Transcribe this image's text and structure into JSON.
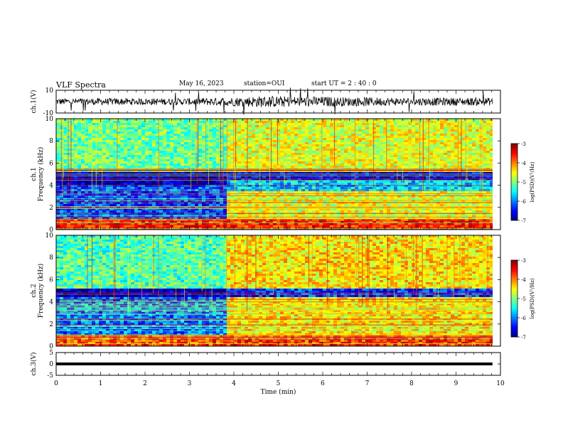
{
  "header": {
    "title": "VLF Spectra",
    "date": "May 16, 2023",
    "station": "station=OUI",
    "start": "start  UT =  2 : 40 : 0"
  },
  "chart_data": [
    {
      "type": "line",
      "panel": "ch1-waveform",
      "ylabel": "ch.1(V)",
      "ylim": [
        -10,
        10
      ],
      "yticks": [
        "10",
        "-10"
      ],
      "xlim": [
        0,
        10
      ],
      "data_extent_min": 9.82,
      "series": [
        {
          "x": [
            0,
            1,
            1.5,
            2,
            2.5,
            3,
            3.5,
            4,
            4.5,
            5,
            5.5,
            6,
            6.5,
            7,
            7.5,
            8,
            8.5,
            9,
            9.5,
            9.82
          ],
          "y_envelope": [
            3,
            3,
            3,
            3,
            3,
            3,
            3.5,
            4,
            5,
            5,
            4.5,
            4.5,
            4,
            4,
            3.5,
            3.5,
            3.5,
            3.5,
            3.5,
            3.5
          ]
        }
      ]
    },
    {
      "type": "heatmap",
      "panel": "ch1-spectrogram",
      "ylabel": "ch.1\nFrequency (kHz)",
      "ylim": [
        0,
        10
      ],
      "yticks": [
        "0",
        "2",
        "4",
        "6",
        "8",
        "10"
      ],
      "xlim": [
        0,
        10
      ],
      "colorbar": {
        "range": [
          -7,
          -3
        ],
        "ticks": [
          "-3",
          "-4",
          "-5",
          "-6",
          "-7"
        ],
        "label": "log(PSD)(V²/Hz)"
      },
      "regimes": [
        {
          "t": [
            0,
            3.8
          ],
          "bands": [
            {
              "f": [
                0,
                1
              ],
              "v": -3.6
            },
            {
              "f": [
                1,
                4.2
              ],
              "v": -6.2
            },
            {
              "f": [
                4.2,
                5.3
              ],
              "v": -6.8
            },
            {
              "f": [
                5.3,
                10
              ],
              "v": -5.1
            }
          ]
        },
        {
          "t": [
            3.8,
            9.82
          ],
          "bands": [
            {
              "f": [
                0,
                1
              ],
              "v": -3.6
            },
            {
              "f": [
                1,
                3.5
              ],
              "v": -4.6
            },
            {
              "f": [
                3.5,
                4.6
              ],
              "v": -5.7
            },
            {
              "f": [
                4.6,
                5.3
              ],
              "v": -6.6
            },
            {
              "f": [
                5.3,
                10
              ],
              "v": -4.6
            }
          ]
        }
      ]
    },
    {
      "type": "heatmap",
      "panel": "ch2-spectrogram",
      "ylabel": "ch.2\nFrequency (kHz)",
      "ylim": [
        0,
        10
      ],
      "yticks": [
        "0",
        "2",
        "4",
        "6",
        "8",
        "10"
      ],
      "xlim": [
        0,
        10
      ],
      "colorbar": {
        "range": [
          -7,
          -3
        ],
        "ticks": [
          "-3",
          "-4",
          "-5",
          "-6",
          "-7"
        ],
        "label": "log(PSD)(V²/Hz)"
      },
      "regimes": [
        {
          "t": [
            0,
            3.8
          ],
          "bands": [
            {
              "f": [
                0,
                1
              ],
              "v": -3.8
            },
            {
              "f": [
                1,
                4.5
              ],
              "v": -6.0
            },
            {
              "f": [
                4.5,
                5.2
              ],
              "v": -6.8
            },
            {
              "f": [
                5.2,
                10
              ],
              "v": -5.2
            }
          ]
        },
        {
          "t": [
            3.8,
            9.82
          ],
          "bands": [
            {
              "f": [
                0,
                1
              ],
              "v": -3.7
            },
            {
              "f": [
                1,
                4.6
              ],
              "v": -4.4
            },
            {
              "f": [
                4.6,
                5.2
              ],
              "v": -6.3
            },
            {
              "f": [
                5.2,
                10
              ],
              "v": -4.4
            }
          ]
        }
      ]
    },
    {
      "type": "line",
      "panel": "ch3-waveform",
      "ylabel": "ch.3(V)",
      "ylim": [
        -5,
        5
      ],
      "yticks": [
        "5",
        "0",
        "-5"
      ],
      "xlim": [
        0,
        10
      ],
      "data_extent_min": 9.82,
      "series": [
        {
          "x": [
            0,
            9.82
          ],
          "y": [
            0,
            0
          ]
        }
      ]
    }
  ],
  "x_axis": {
    "label": "Time (min)",
    "ticks": [
      "0",
      "1",
      "2",
      "3",
      "4",
      "5",
      "6",
      "7",
      "8",
      "9",
      "10"
    ]
  },
  "colors": {
    "axis": "#000000",
    "trace": "#000000",
    "background": "#ffffff"
  }
}
